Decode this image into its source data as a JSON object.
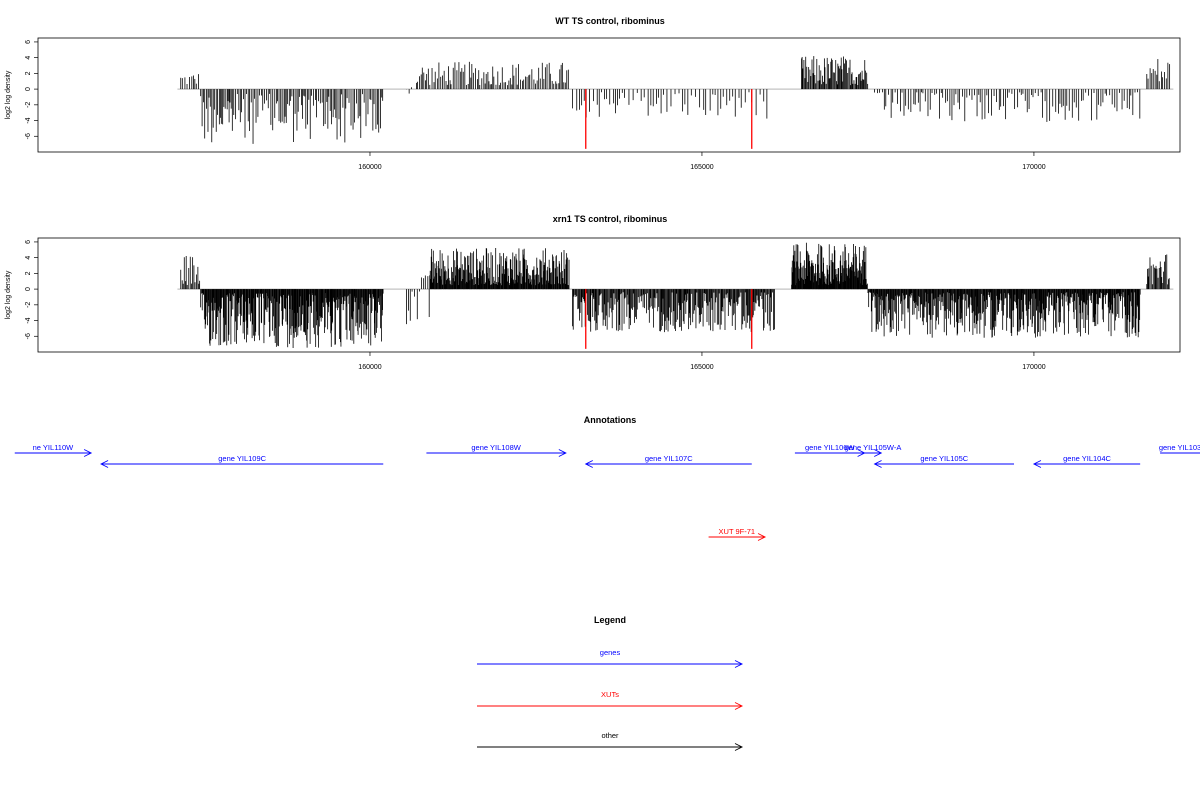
{
  "chart_data": [
    {
      "type": "bar",
      "title": "WT TS control, ribominus",
      "ylabel": "log2 log density",
      "xlim": [
        155000,
        172200
      ],
      "ylim": [
        -8,
        6.5
      ],
      "xticks": [
        160000,
        165000,
        170000
      ],
      "yticks": [
        6,
        4,
        2,
        0,
        -2,
        -4,
        -6
      ],
      "tick_labels_y": [
        "6",
        "4",
        "2",
        "0",
        "-2",
        "-4",
        "-6"
      ],
      "tick_labels_x": [
        "160000",
        "165000",
        "170000"
      ],
      "bar_color": "#000000",
      "highlight_color": "#ff0000",
      "highlight_bars": [
        {
          "x": 163250,
          "y": -7.6
        },
        {
          "x": 165750,
          "y": -7.6
        }
      ],
      "segments": [
        {
          "start": 157150,
          "end": 157450,
          "min": 0.5,
          "max": 2.2,
          "step": 28
        },
        {
          "start": 157450,
          "end": 160200,
          "min": -7.0,
          "max": -0.6,
          "step": 22
        },
        {
          "start": 160550,
          "end": 160650,
          "min": -0.6,
          "max": 1.0,
          "step": 40
        },
        {
          "start": 160700,
          "end": 163000,
          "min": 0.5,
          "max": 3.5,
          "step": 24
        },
        {
          "start": 163050,
          "end": 166000,
          "min": -3.8,
          "max": -0.4,
          "step": 48
        },
        {
          "start": 166500,
          "end": 167500,
          "min": 0.5,
          "max": 4.3,
          "step": 14
        },
        {
          "start": 167600,
          "end": 171600,
          "min": -4.2,
          "max": -0.4,
          "step": 34
        },
        {
          "start": 171700,
          "end": 172050,
          "min": 0.6,
          "max": 4.2,
          "step": 24
        }
      ]
    },
    {
      "type": "bar",
      "title": "xrn1 TS control, ribominus",
      "ylabel": "log2 log density",
      "xlim": [
        155000,
        172200
      ],
      "ylim": [
        -8,
        6.5
      ],
      "xticks": [
        160000,
        165000,
        170000
      ],
      "yticks": [
        6,
        4,
        2,
        0,
        -2,
        -4,
        -6
      ],
      "tick_labels_y": [
        "6",
        "4",
        "2",
        "0",
        "-2",
        "-4",
        "-6"
      ],
      "tick_labels_x": [
        "160000",
        "165000",
        "170000"
      ],
      "bar_color": "#000000",
      "highlight_color": "#ff0000",
      "highlight_bars": [
        {
          "x": 163250,
          "y": -7.6
        },
        {
          "x": 165750,
          "y": -7.6
        }
      ],
      "segments": [
        {
          "start": 157150,
          "end": 157450,
          "min": 0.5,
          "max": 4.6,
          "step": 18
        },
        {
          "start": 157450,
          "end": 160200,
          "min": -7.5,
          "max": -0.5,
          "step": 9
        },
        {
          "start": 160550,
          "end": 160900,
          "min": -4.5,
          "max": 2.0,
          "step": 30
        },
        {
          "start": 160900,
          "end": 163000,
          "min": 0.5,
          "max": 5.3,
          "step": 8
        },
        {
          "start": 163050,
          "end": 166100,
          "min": -5.5,
          "max": -0.4,
          "step": 12
        },
        {
          "start": 166350,
          "end": 167500,
          "min": 0.5,
          "max": 5.9,
          "step": 7
        },
        {
          "start": 167500,
          "end": 171600,
          "min": -6.2,
          "max": -0.4,
          "step": 9
        },
        {
          "start": 171700,
          "end": 172050,
          "min": 0.6,
          "max": 4.8,
          "step": 14
        }
      ]
    }
  ],
  "annotations": {
    "title": "Annotations",
    "genes": [
      {
        "label": "ne YIL110W",
        "dir": "right",
        "start": 154650,
        "end": 155800,
        "row": 0,
        "color": "#0000ff"
      },
      {
        "label": "gene YIL109C",
        "dir": "left",
        "start": 155950,
        "end": 160200,
        "row": 1,
        "color": "#0000ff"
      },
      {
        "label": "gene YIL108W",
        "dir": "right",
        "start": 160850,
        "end": 162950,
        "row": 0,
        "color": "#0000ff"
      },
      {
        "label": "gene YIL107C",
        "dir": "left",
        "start": 163250,
        "end": 165750,
        "row": 1,
        "color": "#0000ff"
      },
      {
        "label": "gene YIL106W",
        "dir": "right",
        "start": 166400,
        "end": 167450,
        "row": 0,
        "color": "#0000ff"
      },
      {
        "label": "gene YIL105W-A",
        "dir": "right",
        "start": 167450,
        "end": 167700,
        "row": 0,
        "color": "#0000ff"
      },
      {
        "label": "gene YIL105C",
        "dir": "left",
        "start": 167600,
        "end": 169700,
        "row": 1,
        "color": "#0000ff"
      },
      {
        "label": "gene YIL104C",
        "dir": "left",
        "start": 170000,
        "end": 171600,
        "row": 1,
        "color": "#0000ff"
      },
      {
        "label": "gene YIL103",
        "dir": "right",
        "start": 171900,
        "end": 173000,
        "row": 0,
        "color": "#0000ff"
      },
      {
        "label": "XUT 9F-71",
        "dir": "right",
        "start": 165100,
        "end": 165950,
        "row": 3,
        "color": "#ff0000"
      }
    ]
  },
  "legend": {
    "title": "Legend",
    "items": [
      {
        "label": "genes",
        "color": "#0000ff"
      },
      {
        "label": "XUTs",
        "color": "#ff0000"
      },
      {
        "label": "other",
        "color": "#000000"
      }
    ]
  }
}
